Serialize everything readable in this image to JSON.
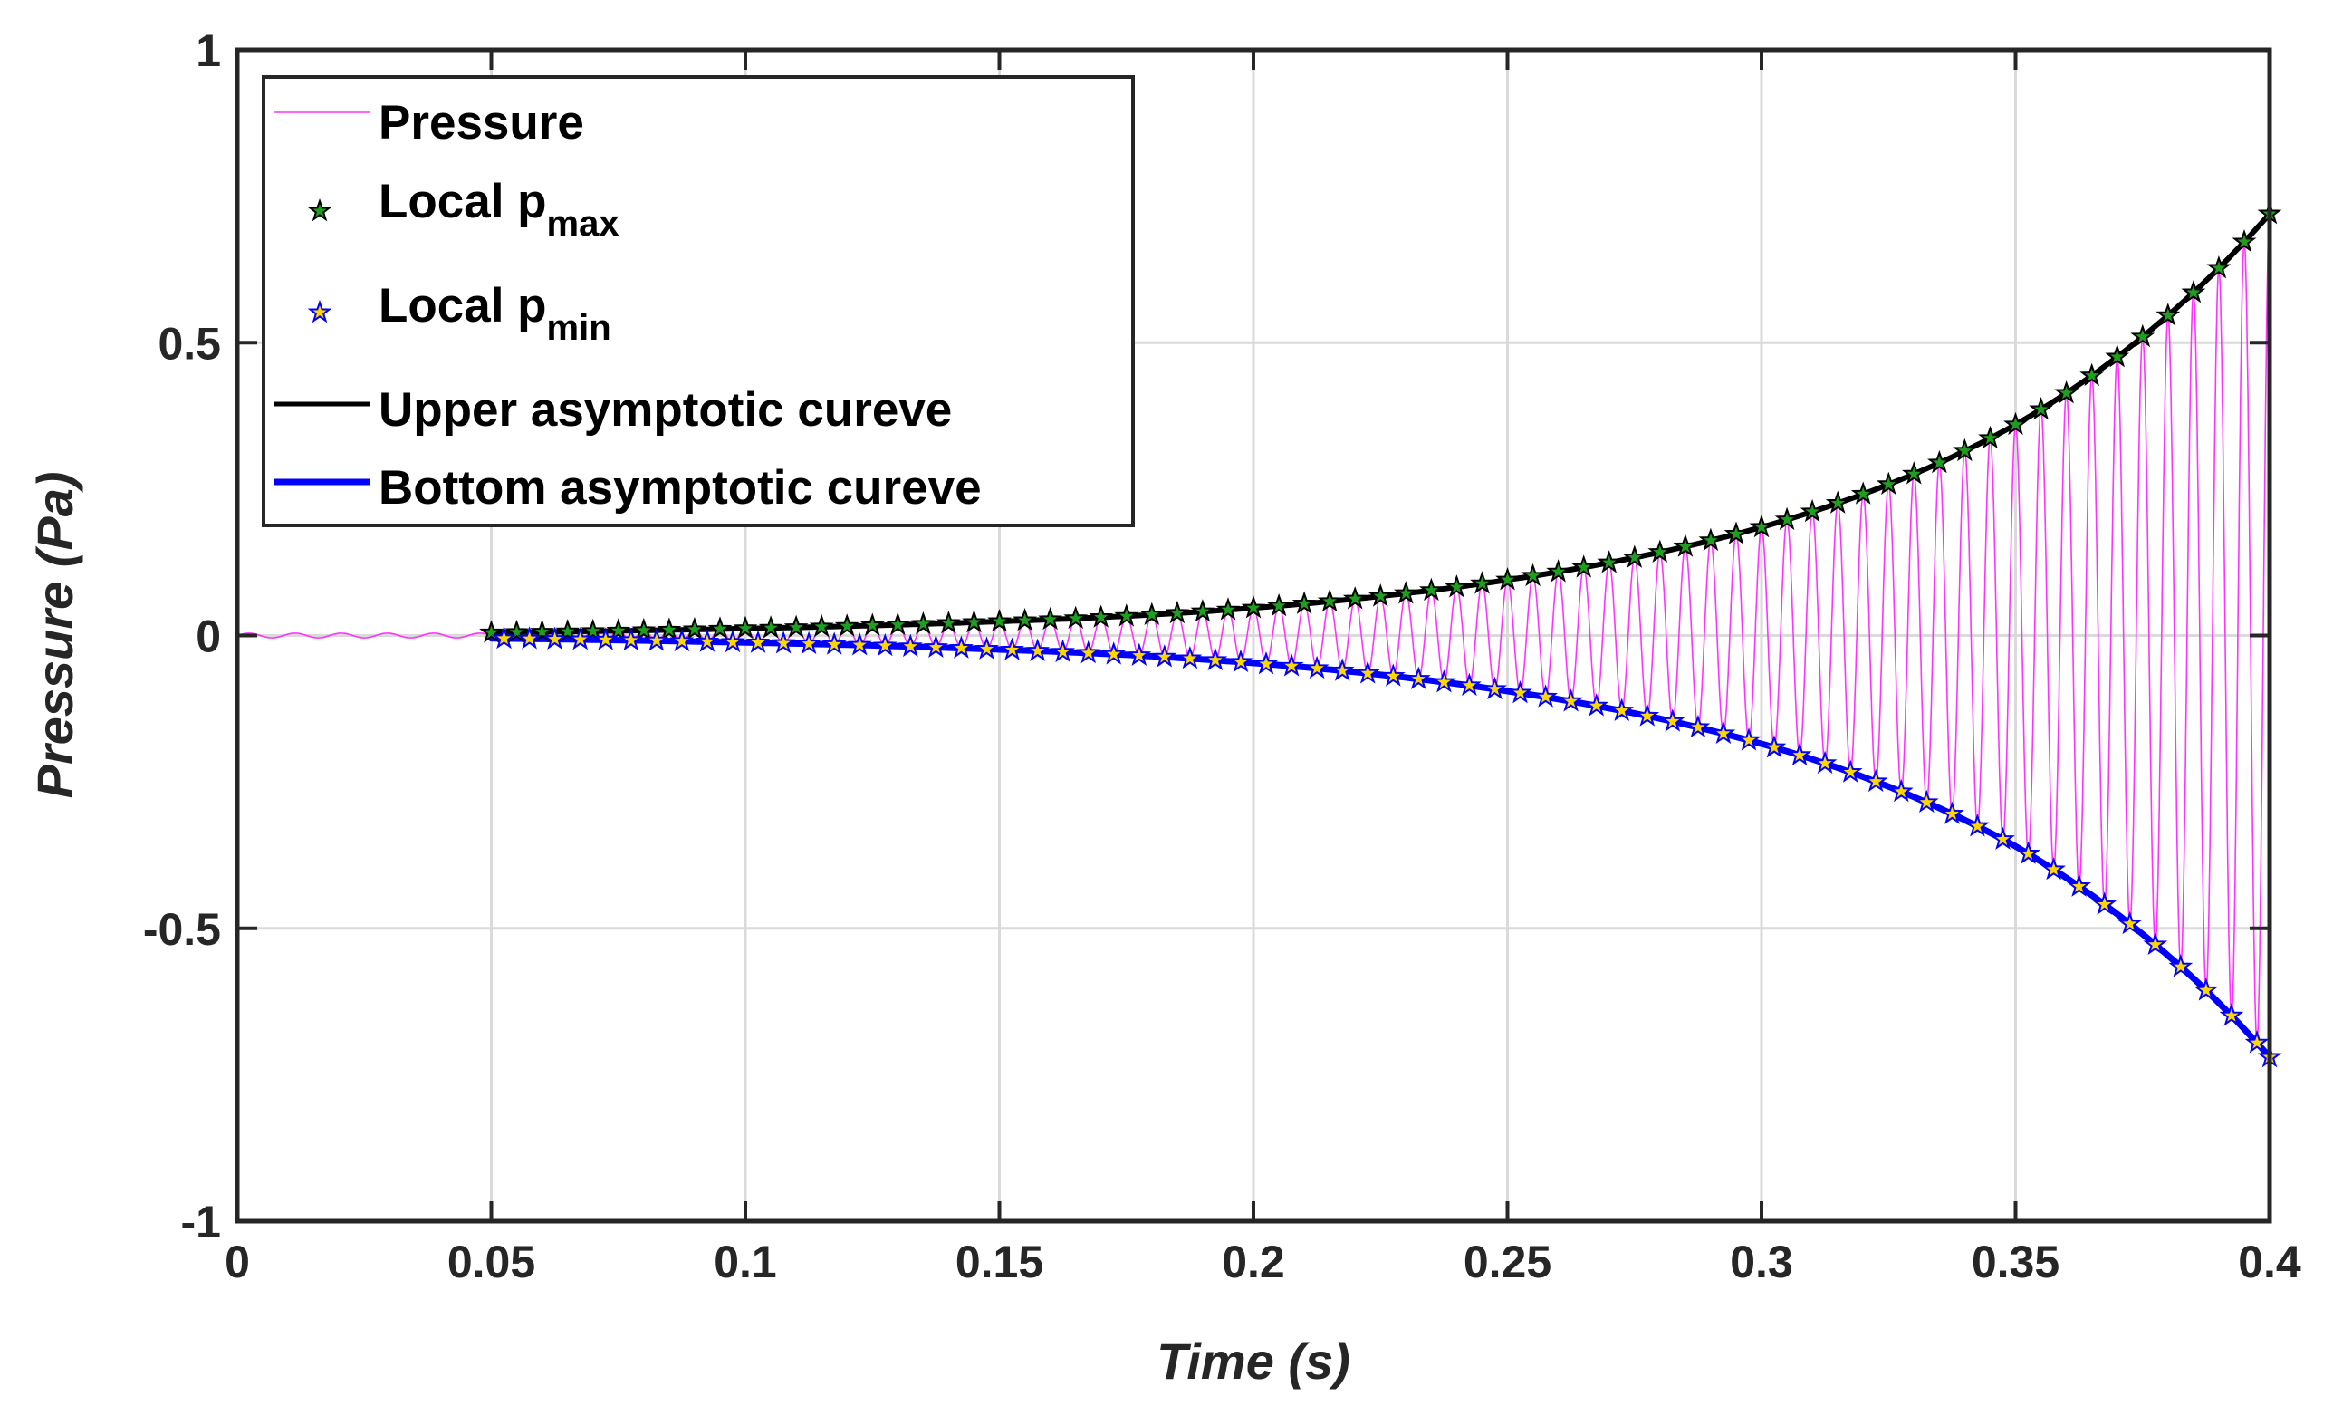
{
  "chart_data": {
    "type": "line",
    "xlabel": "Time (s)",
    "ylabel": "Pressure (Pa)",
    "xlim": [
      0,
      0.4
    ],
    "ylim": [
      -1,
      1
    ],
    "x_ticks": [
      0,
      0.05,
      0.1,
      0.15,
      0.2,
      0.25,
      0.3,
      0.35,
      0.4
    ],
    "x_tick_labels": [
      "0",
      "0.05",
      "0.1",
      "0.15",
      "0.2",
      "0.25",
      "0.3",
      "0.35",
      "0.4"
    ],
    "y_ticks": [
      1,
      0.5,
      0,
      -0.5,
      -1
    ],
    "y_tick_labels": [
      "1",
      "0.5",
      "0",
      "-0.5",
      "-1"
    ],
    "grid": true,
    "legend_position": "top-left",
    "oscillation": {
      "frequency_hz": 200,
      "pre_start_amplitude": 0.004,
      "growth_start_s": 0.05
    },
    "series": [
      {
        "name": "Pressure",
        "style": "thin-line",
        "color": "#ff33ff"
      },
      {
        "name": "Local p",
        "subscript": "max",
        "style": "star-markers",
        "color": "#1f9e1f",
        "edge": "#000000"
      },
      {
        "name": "Local p",
        "subscript": "min",
        "style": "star-markers",
        "color": "#ffd700",
        "edge": "#0000ff"
      },
      {
        "name": "Upper asymptotic cureve",
        "style": "thick-line",
        "color": "#000000",
        "x": [
          0.05,
          0.075,
          0.1,
          0.125,
          0.15,
          0.175,
          0.2,
          0.225,
          0.25,
          0.275,
          0.3,
          0.325,
          0.35,
          0.375,
          0.4
        ],
        "y": [
          0.005,
          0.008,
          0.012,
          0.017,
          0.024,
          0.033,
          0.047,
          0.067,
          0.095,
          0.133,
          0.185,
          0.258,
          0.36,
          0.51,
          0.72
        ]
      },
      {
        "name": "Bottom asymptotic cureve",
        "style": "thick-line",
        "color": "#0000ff",
        "x": [
          0.05,
          0.075,
          0.1,
          0.125,
          0.15,
          0.175,
          0.2,
          0.225,
          0.25,
          0.275,
          0.3,
          0.325,
          0.35,
          0.375,
          0.4
        ],
        "y": [
          -0.005,
          -0.008,
          -0.012,
          -0.017,
          -0.024,
          -0.033,
          -0.047,
          -0.067,
          -0.095,
          -0.133,
          -0.185,
          -0.258,
          -0.36,
          -0.51,
          -0.72
        ]
      }
    ]
  }
}
